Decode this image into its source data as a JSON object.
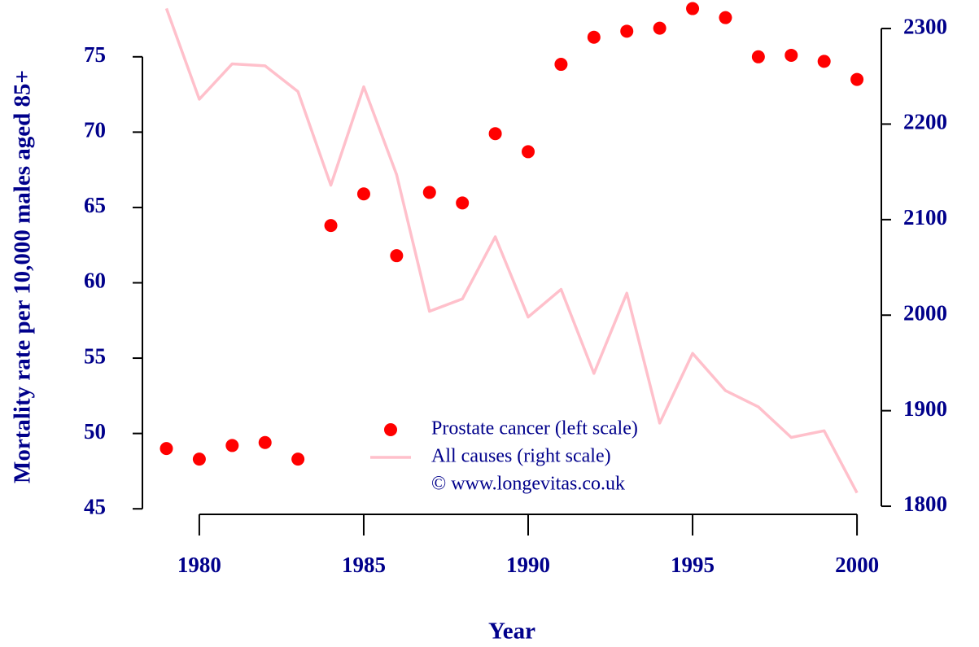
{
  "chart_data": {
    "type": "line",
    "x_label": "Year",
    "y_label": "Mortality rate per 10,000 males aged 85+",
    "x": [
      1979,
      1980,
      1981,
      1982,
      1983,
      1984,
      1985,
      1986,
      1987,
      1988,
      1989,
      1990,
      1991,
      1992,
      1993,
      1994,
      1995,
      1996,
      1997,
      1998,
      1999,
      2000
    ],
    "series": [
      {
        "name": "Prostate cancer (left scale)",
        "type": "scatter",
        "color": "#ff0000",
        "axis": "y",
        "values": [
          49.0,
          48.3,
          49.2,
          49.4,
          48.3,
          63.8,
          65.9,
          61.8,
          66.0,
          65.3,
          69.9,
          68.7,
          74.5,
          76.3,
          76.7,
          76.9,
          78.2,
          77.6,
          75.0,
          75.1,
          74.7,
          73.5
        ]
      },
      {
        "name": "All causes (right scale)",
        "type": "line",
        "color": "#ffc0cb",
        "axis": "y2",
        "values": [
          2321,
          2226,
          2263,
          2261,
          2234,
          2136,
          2239,
          2147,
          2004,
          2017,
          2082,
          1998,
          2027,
          1939,
          2023,
          1887,
          1960,
          1921,
          1904,
          1872,
          1879,
          1814
        ]
      }
    ],
    "legend_note": "© www.longevitas.co.uk",
    "legend": "bottom",
    "xlim": [
      1978.27,
      2000.74
    ],
    "xticks": [
      1980,
      1985,
      1990,
      1995,
      2000
    ],
    "ylim": [
      44.2,
      78.5
    ],
    "yticks": [
      45,
      50,
      55,
      60,
      65,
      70,
      75
    ],
    "y2lim": [
      1784.7,
      2325.6
    ],
    "y2ticks": [
      1800,
      1900,
      2000,
      2100,
      2200,
      2300
    ],
    "axis_color": "#00008b"
  }
}
